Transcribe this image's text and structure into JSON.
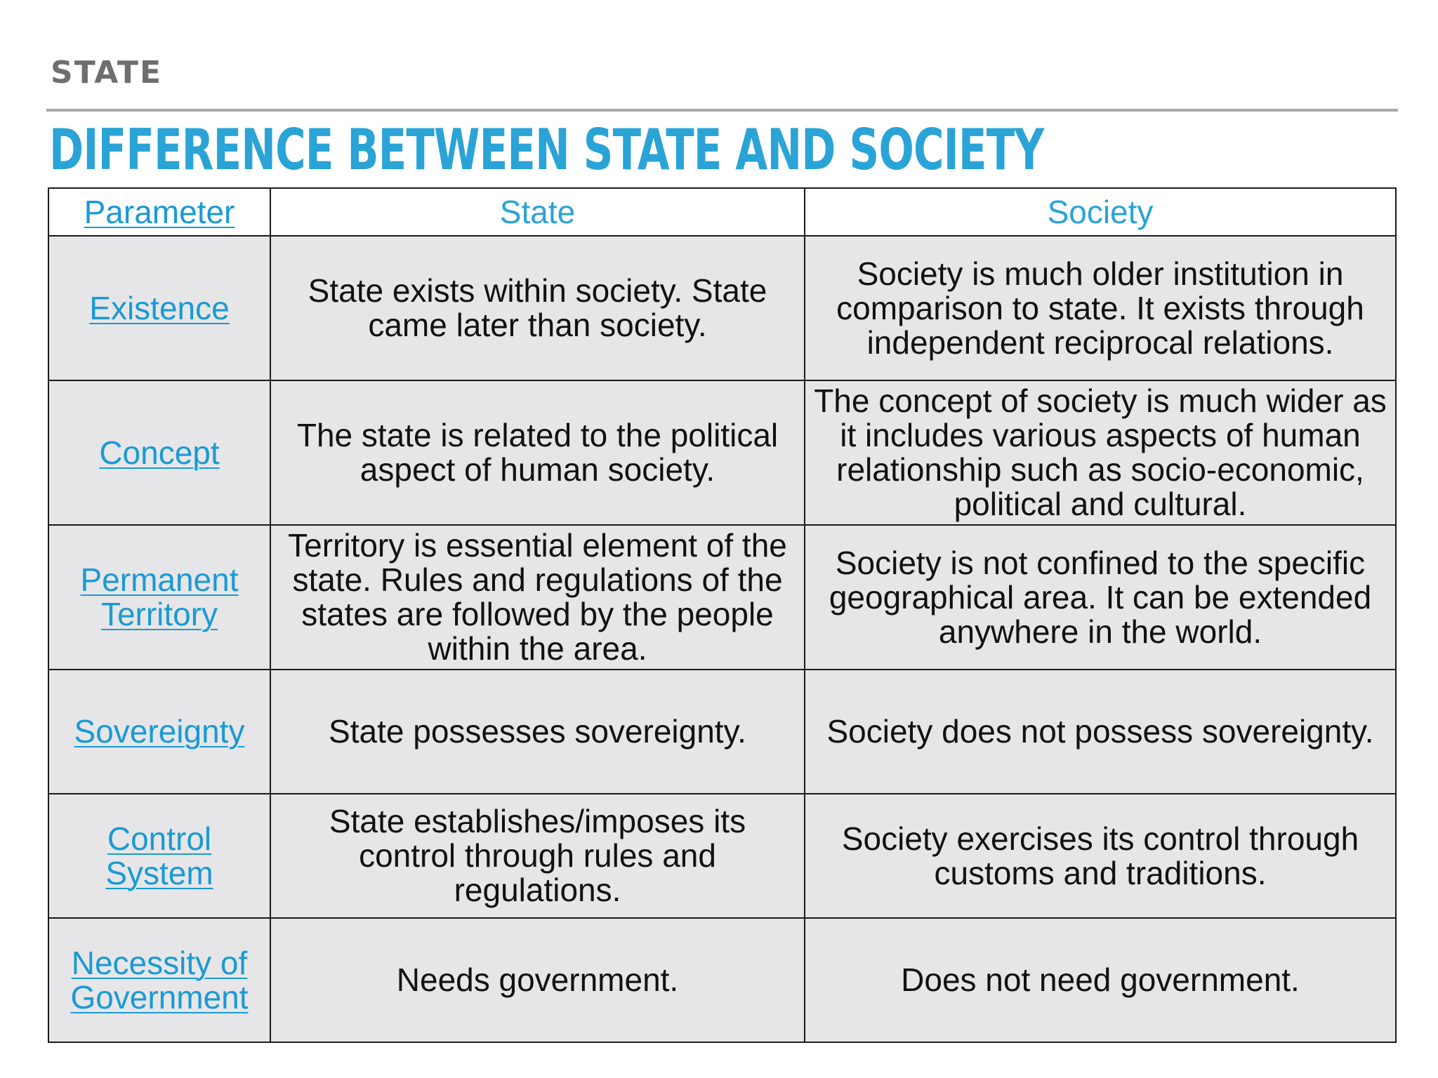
{
  "header": {
    "section": "STATE",
    "title": "DIFFERENCE BETWEEN STATE AND SOCIETY",
    "accent_color": "#2aa3d6",
    "label_color": "#6e6e6e"
  },
  "table": {
    "columns": [
      "Parameter",
      "State",
      "Society"
    ],
    "rows": [
      {
        "parameter": "Existence",
        "state": "State exists within society. State came later than society.",
        "society": "Society is much older institution in comparison to state. It exists through independent reciprocal relations."
      },
      {
        "parameter": "Concept",
        "state": "The state is related to the political aspect of human society.",
        "society": "The concept of society is much wider as it includes various aspects of human relationship such as socio-economic, political and cultural."
      },
      {
        "parameter": "Permanent Territory",
        "state": "Territory is essential element of the state. Rules and regulations of the states are followed by the people within the area.",
        "society": "Society is not confined to the specific geographical area. It can be extended anywhere in the world."
      },
      {
        "parameter": "Sovereignty",
        "state": "State possesses sovereignty.",
        "society": "Society does not possess sovereignty."
      },
      {
        "parameter": "Control System",
        "state": "State establishes/imposes its control through rules and regulations.",
        "society": "Society exercises its control through customs and traditions."
      },
      {
        "parameter": "Necessity of Government",
        "state": "Needs government.",
        "society": "Does not need government."
      }
    ]
  }
}
